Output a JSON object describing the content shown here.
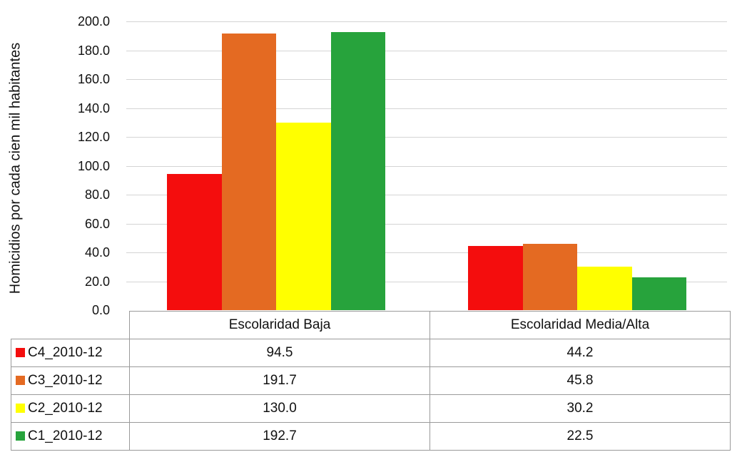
{
  "chart_data": {
    "type": "bar",
    "title": "",
    "xlabel": "",
    "ylabel": "Homicidios por cada cien mil habitantes",
    "ylim": [
      0,
      200
    ],
    "yticks": [
      "0.0",
      "20.0",
      "40.0",
      "60.0",
      "80.0",
      "100.0",
      "120.0",
      "140.0",
      "160.0",
      "180.0",
      "200.0"
    ],
    "grid": true,
    "legend_position": "data-table",
    "categories": [
      "Escolaridad Baja",
      "Escolaridad Media/Alta"
    ],
    "series": [
      {
        "name": "C4_2010-12",
        "color": "#f40d0d",
        "values": [
          94.5,
          44.2
        ],
        "labels": [
          "94.5",
          "44.2"
        ]
      },
      {
        "name": "C3_2010-12",
        "color": "#e46a22",
        "values": [
          191.7,
          45.8
        ],
        "labels": [
          "191.7",
          "45.8"
        ]
      },
      {
        "name": "C2_2010-12",
        "color": "#ffff00",
        "values": [
          130.0,
          30.2
        ],
        "labels": [
          "130.0",
          "30.2"
        ]
      },
      {
        "name": "C1_2010-12",
        "color": "#27a33c",
        "values": [
          192.7,
          22.5
        ],
        "labels": [
          "192.7",
          "22.5"
        ]
      }
    ]
  }
}
